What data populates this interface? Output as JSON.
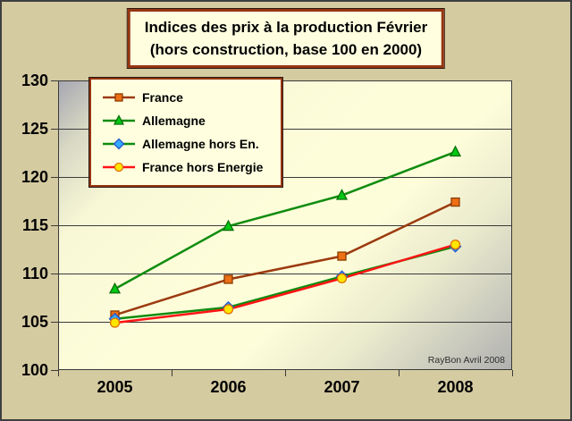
{
  "title": {
    "line1": "Indices des prix à la production Février",
    "line2": "(hors construction, base 100 en 2000)"
  },
  "watermark": "RayBon Avril 2008",
  "colors": {
    "background": "#d5cba1",
    "panel_fill": "#ffffe0",
    "panel_border": "#953512",
    "grid": "#3a3a3a",
    "plot_gradient_gray": "#a6a6b2",
    "plot_gradient_yellow": "#fdfdda"
  },
  "chart_data": {
    "type": "line",
    "title": "Indices des prix à la production Février (hors construction, base 100 en 2000)",
    "categories": [
      "2005",
      "2006",
      "2007",
      "2008"
    ],
    "series": [
      {
        "name": "France",
        "values": [
          105.7,
          109.4,
          111.8,
          117.4
        ],
        "line_color": "#9c3a0f",
        "marker": "square",
        "marker_fill": "#ed7014",
        "marker_edge": "#8b3a00"
      },
      {
        "name": "Allemagne",
        "values": [
          108.4,
          114.9,
          118.1,
          122.6
        ],
        "line_color": "#0f8c0f",
        "marker": "triangle",
        "marker_fill": "#00c814",
        "marker_edge": "#0a6e0a"
      },
      {
        "name": "Allemagne hors En.",
        "values": [
          105.3,
          106.5,
          109.7,
          112.8
        ],
        "line_color": "#0f8c0f",
        "marker": "diamond",
        "marker_fill": "#35aaff",
        "marker_edge": "#2255cc"
      },
      {
        "name": "France hors Energie",
        "values": [
          104.9,
          106.3,
          109.5,
          113.0
        ],
        "line_color": "#ff1414",
        "marker": "circle",
        "marker_fill": "#ffe600",
        "marker_edge": "#e07000"
      }
    ],
    "ylim": [
      100,
      130
    ],
    "y_ticks": [
      100,
      105,
      110,
      115,
      120,
      125,
      130
    ],
    "grid": true,
    "legend_position": "top-left"
  }
}
